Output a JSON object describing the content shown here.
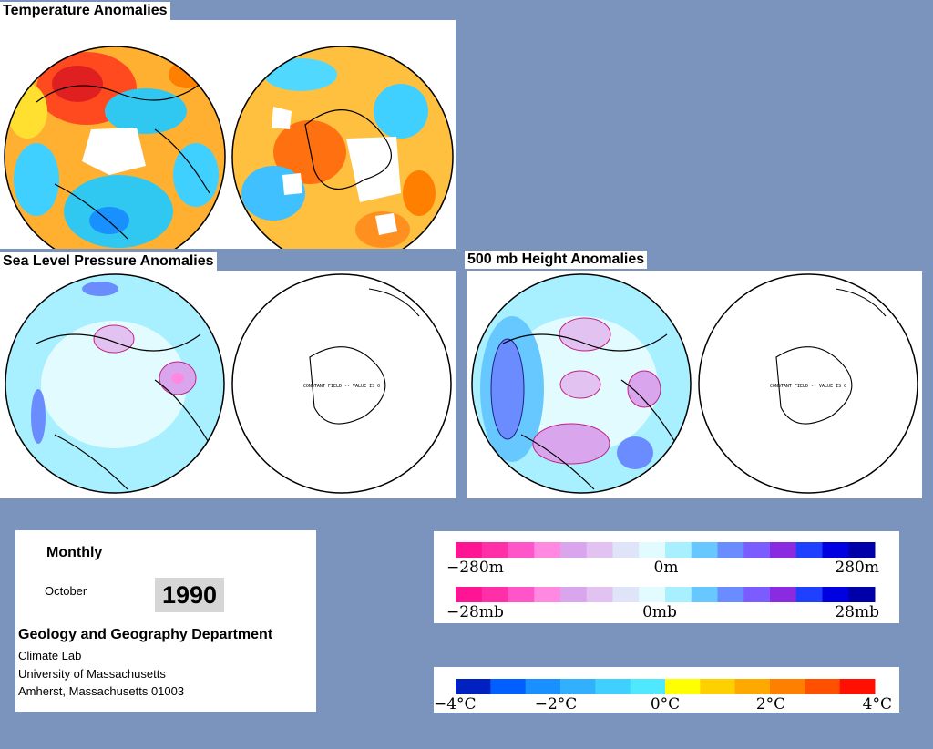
{
  "panels": {
    "temperature": {
      "title": "Temperature Anomalies"
    },
    "slp": {
      "title": "Sea Level Pressure Anomalies",
      "constant_note": "CONSTANT FIELD -- VALUE IS 0"
    },
    "height500": {
      "title": "500 mb Height Anomalies",
      "constant_note": "CONSTANT FIELD -- VALUE IS 0"
    }
  },
  "info": {
    "period": "Monthly",
    "month": "October",
    "year": "1990",
    "department": "Geology and Geography Department",
    "lab": "Climate Lab",
    "university": "University of Massachusetts",
    "address": "Amherst, Massachusetts 01003"
  },
  "legends": {
    "height": {
      "colors": [
        "#ff1493",
        "#ff2fa8",
        "#ff55c8",
        "#ff88e0",
        "#d9a6ee",
        "#e2c2f0",
        "#e0e4f8",
        "#e2fbff",
        "#a8f0ff",
        "#66c8ff",
        "#6a8cff",
        "#7b5cff",
        "#8a2be2",
        "#2040ff",
        "#0000e0",
        "#0000a8"
      ],
      "labels": [
        "−280m",
        "0m",
        "280m"
      ]
    },
    "pressure": {
      "colors": [
        "#ff1493",
        "#ff2fa8",
        "#ff55c8",
        "#ff88e0",
        "#d9a6ee",
        "#e2c2f0",
        "#e0e4f8",
        "#e2fbff",
        "#a8f0ff",
        "#66c8ff",
        "#6a8cff",
        "#7b5cff",
        "#8a2be2",
        "#2040ff",
        "#0000e0",
        "#0000a8"
      ],
      "labels": [
        "−28mb",
        "0mb",
        "28mb"
      ]
    },
    "temperature": {
      "colors": [
        "#0020c0",
        "#0060ff",
        "#1890ff",
        "#30b0ff",
        "#40d0ff",
        "#50e8ff",
        "#ffff00",
        "#ffd000",
        "#ffa800",
        "#ff8000",
        "#ff5000",
        "#ff1000"
      ],
      "labels": [
        "−4°C",
        "−2°C",
        "0°C",
        "2°C",
        "4°C"
      ]
    }
  }
}
